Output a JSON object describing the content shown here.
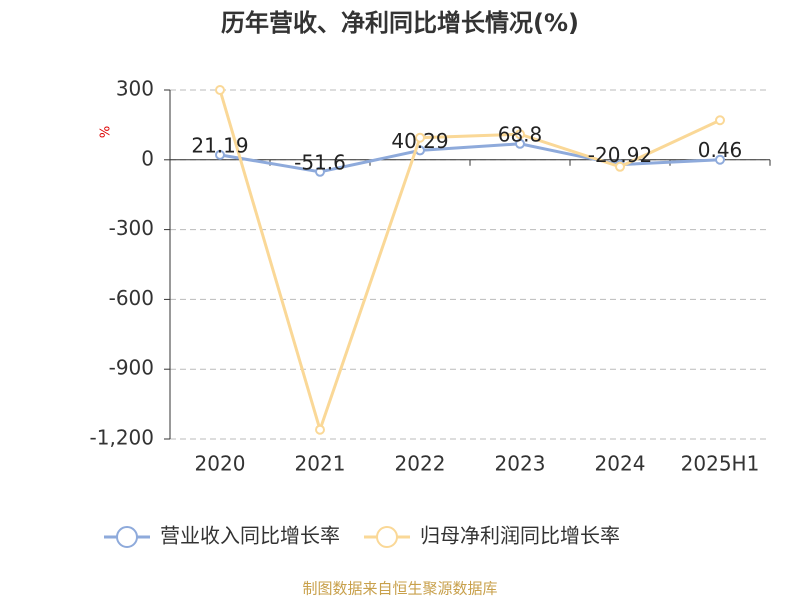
{
  "chart_data": {
    "type": "line",
    "title": "历年营收、净利同比增长情况(%)",
    "y_label": "%",
    "categories": [
      "2020",
      "2021",
      "2022",
      "2023",
      "2024",
      "2025H1"
    ],
    "series": [
      {
        "name": "营业收入同比增长率",
        "color": "#8eaadb",
        "values": [
          21.19,
          -51.6,
          40.29,
          68.8,
          -20.92,
          0.46
        ],
        "show_labels": true
      },
      {
        "name": "归母净利润同比增长率",
        "color": "#fad897",
        "values": [
          300,
          -1160,
          95,
          110,
          -30,
          170
        ],
        "show_labels": false
      }
    ],
    "ylim": [
      -1200,
      300
    ],
    "yticks": [
      {
        "value": -1200,
        "label": "-1,200"
      },
      -900,
      -600,
      -300,
      0,
      300
    ],
    "grid": true,
    "legend": "bottom",
    "source": "制图数据来自恒生聚源数据库"
  }
}
